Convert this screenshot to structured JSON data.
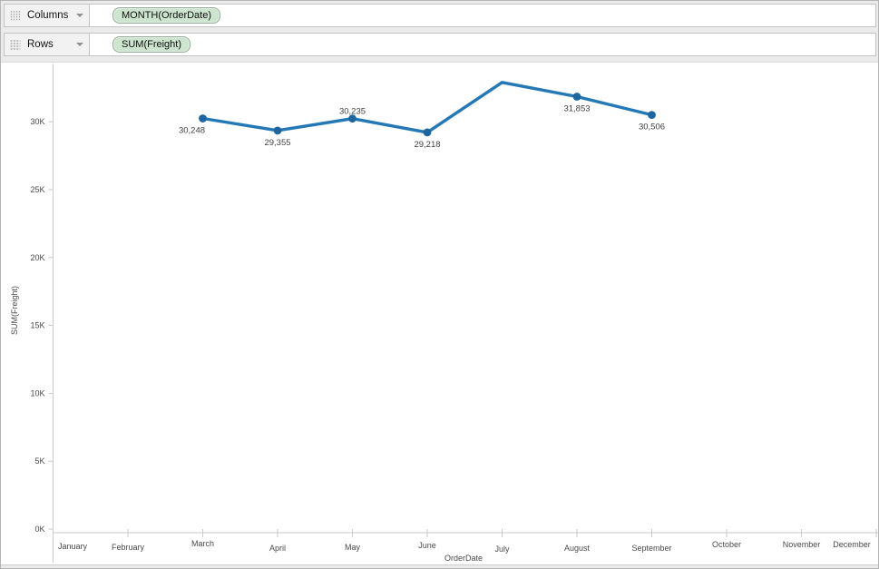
{
  "shelves": {
    "columns": {
      "label": "Columns",
      "pill": "MONTH(OrderDate)"
    },
    "rows": {
      "label": "Rows",
      "pill": "SUM(Freight)"
    }
  },
  "icons": {
    "columns_shelf": "grid-columns-grip",
    "rows_shelf": "grid-rows-grip",
    "shelf_dropdown": "caret-down"
  },
  "colors": {
    "pill_green": "#cde4cf",
    "pill_border": "#96a998",
    "line_blue": "#2478b5",
    "marker_blue": "#1d669f",
    "axis_line": "#c9c9c9",
    "tick_text": "#4a4a4a",
    "data_label_text": "#414141"
  },
  "chart_data": {
    "type": "line",
    "title": "",
    "xlabel": "OrderDate",
    "ylabel": "SUM(Freight)",
    "x_categories": [
      "January",
      "February",
      "March",
      "April",
      "May",
      "June",
      "July",
      "August",
      "September",
      "October",
      "November",
      "December"
    ],
    "y_tick_labels": [
      "0K",
      "5K",
      "10K",
      "15K",
      "20K",
      "25K",
      "30K"
    ],
    "y_tick_values": [
      0,
      5000,
      10000,
      15000,
      20000,
      25000,
      30000
    ],
    "ylim": [
      0,
      34400
    ],
    "grid": false,
    "legend": "none",
    "series_name": "SUM(Freight)",
    "points": [
      {
        "month": "March",
        "x_index": 2,
        "value": 30248,
        "label": "30,248",
        "label_pos": "below-left",
        "marker": true
      },
      {
        "month": "April",
        "x_index": 3,
        "value": 29355,
        "label": "29,355",
        "label_pos": "below",
        "marker": true
      },
      {
        "month": "May",
        "x_index": 4,
        "value": 30235,
        "label": "30,235",
        "label_pos": "above",
        "marker": true
      },
      {
        "month": "June",
        "x_index": 5,
        "value": 29218,
        "label": "29,218",
        "label_pos": "below",
        "marker": true
      },
      {
        "month": "July",
        "x_index": 6,
        "value": 32900,
        "estimated": true,
        "label": "",
        "label_pos": "none",
        "marker": false
      },
      {
        "month": "August",
        "x_index": 7,
        "value": 31853,
        "label": "31,853",
        "label_pos": "below",
        "marker": true
      },
      {
        "month": "September",
        "x_index": 8,
        "value": 30506,
        "label": "30,506",
        "label_pos": "below",
        "marker": true
      }
    ]
  }
}
